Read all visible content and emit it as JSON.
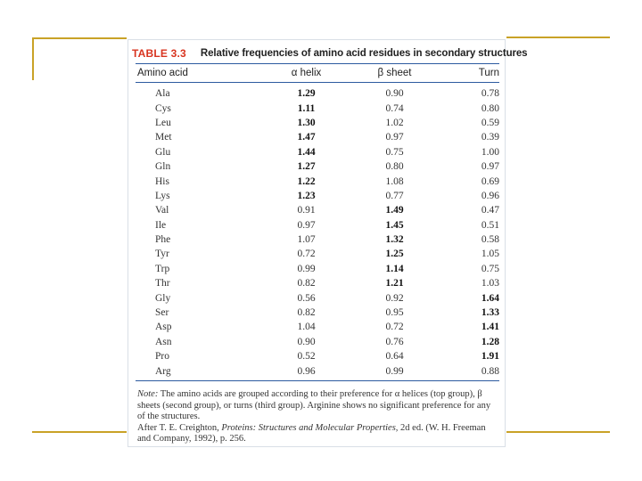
{
  "table": {
    "label": "TABLE 3.3",
    "title": "Relative frequencies of amino acid residues in secondary structures",
    "headers": [
      "Amino acid",
      "α helix",
      "β sheet",
      "Turn"
    ],
    "rows": [
      {
        "aa": "Ala",
        "helix": "1.29",
        "sheet": "0.90",
        "turn": "0.78",
        "bold": "helix"
      },
      {
        "aa": "Cys",
        "helix": "1.11",
        "sheet": "0.74",
        "turn": "0.80",
        "bold": "helix"
      },
      {
        "aa": "Leu",
        "helix": "1.30",
        "sheet": "1.02",
        "turn": "0.59",
        "bold": "helix"
      },
      {
        "aa": "Met",
        "helix": "1.47",
        "sheet": "0.97",
        "turn": "0.39",
        "bold": "helix"
      },
      {
        "aa": "Glu",
        "helix": "1.44",
        "sheet": "0.75",
        "turn": "1.00",
        "bold": "helix"
      },
      {
        "aa": "Gln",
        "helix": "1.27",
        "sheet": "0.80",
        "turn": "0.97",
        "bold": "helix"
      },
      {
        "aa": "His",
        "helix": "1.22",
        "sheet": "1.08",
        "turn": "0.69",
        "bold": "helix"
      },
      {
        "aa": "Lys",
        "helix": "1.23",
        "sheet": "0.77",
        "turn": "0.96",
        "bold": "helix"
      },
      {
        "aa": "Val",
        "helix": "0.91",
        "sheet": "1.49",
        "turn": "0.47",
        "bold": "sheet"
      },
      {
        "aa": "Ile",
        "helix": "0.97",
        "sheet": "1.45",
        "turn": "0.51",
        "bold": "sheet"
      },
      {
        "aa": "Phe",
        "helix": "1.07",
        "sheet": "1.32",
        "turn": "0.58",
        "bold": "sheet"
      },
      {
        "aa": "Tyr",
        "helix": "0.72",
        "sheet": "1.25",
        "turn": "1.05",
        "bold": "sheet"
      },
      {
        "aa": "Trp",
        "helix": "0.99",
        "sheet": "1.14",
        "turn": "0.75",
        "bold": "sheet"
      },
      {
        "aa": "Thr",
        "helix": "0.82",
        "sheet": "1.21",
        "turn": "1.03",
        "bold": "sheet"
      },
      {
        "aa": "Gly",
        "helix": "0.56",
        "sheet": "0.92",
        "turn": "1.64",
        "bold": "turn"
      },
      {
        "aa": "Ser",
        "helix": "0.82",
        "sheet": "0.95",
        "turn": "1.33",
        "bold": "turn"
      },
      {
        "aa": "Asp",
        "helix": "1.04",
        "sheet": "0.72",
        "turn": "1.41",
        "bold": "turn"
      },
      {
        "aa": "Asn",
        "helix": "0.90",
        "sheet": "0.76",
        "turn": "1.28",
        "bold": "turn"
      },
      {
        "aa": "Pro",
        "helix": "0.52",
        "sheet": "0.64",
        "turn": "1.91",
        "bold": "turn"
      },
      {
        "aa": "Arg",
        "helix": "0.96",
        "sheet": "0.99",
        "turn": "0.88",
        "bold": ""
      }
    ],
    "note": {
      "label": "Note:",
      "text": "The amino acids are grouped according to their preference for α helices (top group), β sheets (second group), or turns (third group). Arginine shows no significant preference for any of the structures.",
      "source_prefix": "After T. E. Creighton,",
      "source_title": "Proteins: Structures and Molecular Properties,",
      "source_suffix": "2d ed. (W. H. Freeman and Company, 1992), p. 256."
    }
  },
  "colors": {
    "accent_gold": "#c9a227",
    "label_red": "#d8341f",
    "rule_blue": "#2c5aa0"
  }
}
